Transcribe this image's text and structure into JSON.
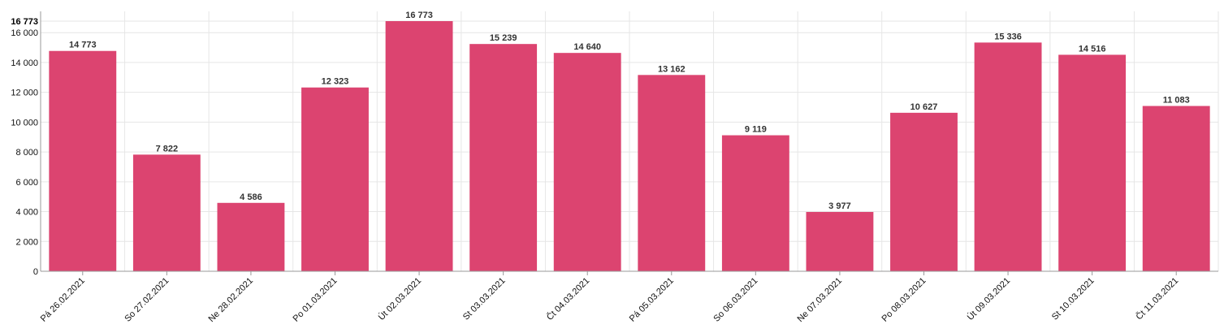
{
  "chart_data": {
    "type": "bar",
    "categories": [
      "Pá 26.02.2021",
      "So 27.02.2021",
      "Ne 28.02.2021",
      "Po 01.03.2021",
      "Út 02.03.2021",
      "St 03.03.2021",
      "Čt 04.03.2021",
      "Pá 05.03.2021",
      "So 06.03.2021",
      "Ne 07.03.2021",
      "Po 08.03.2021",
      "Út 09.03.2021",
      "St 10.03.2021",
      "Čt 11.03.2021"
    ],
    "values": [
      14773,
      7822,
      4586,
      12323,
      16773,
      15239,
      14640,
      13162,
      9119,
      3977,
      10627,
      15336,
      14516,
      11083
    ],
    "data_labels": [
      "14 773",
      "7 822",
      "4 586",
      "12 323",
      "16 773",
      "15 239",
      "14 640",
      "13 162",
      "9 119",
      "3 977",
      "10 627",
      "15 336",
      "14 516",
      "11 083"
    ],
    "y_ticks": [
      0,
      2000,
      4000,
      6000,
      8000,
      10000,
      12000,
      14000,
      16000
    ],
    "y_tick_labels": [
      "0",
      "2 000",
      "4 000",
      "6 000",
      "8 000",
      "10 000",
      "12 000",
      "14 000",
      "16 000"
    ],
    "y_max_label": "16 773",
    "ylim": [
      0,
      16773
    ],
    "title": "",
    "xlabel": "",
    "ylabel": "",
    "grid": true,
    "legend": "none",
    "colors": {
      "bar": "#dc4470",
      "grid": "#e6e6e6",
      "axis": "#999999"
    }
  }
}
